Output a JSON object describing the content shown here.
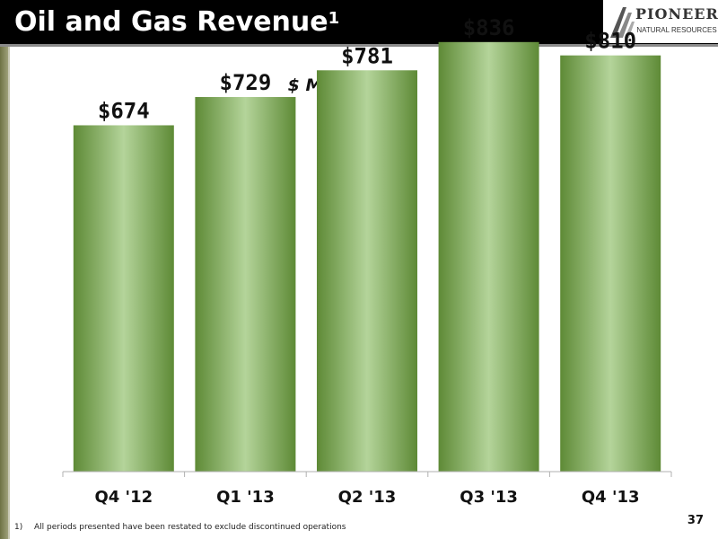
{
  "slide": {
    "title": "Oil and Gas Revenue",
    "title_superscript": "1",
    "subtitle": "$ Millions",
    "page_number": "37"
  },
  "logo": {
    "name": "PIONEER",
    "tagline": "NATURAL RESOURCES",
    "icon": "pioneer-logo-icon"
  },
  "footnote": {
    "number": "1)",
    "text": "All periods presented have been restated to exclude discontinued operations"
  },
  "colors": {
    "header_bg": "#000000",
    "bar_dark": "#5e8a36",
    "bar_light": "#b4d49a",
    "axis": "#b0b0b0"
  },
  "chart_data": {
    "type": "bar",
    "categories": [
      "Q4 '12",
      "Q1 '13",
      "Q2 '13",
      "Q3 '13",
      "Q4 '13"
    ],
    "values": [
      674,
      729,
      781,
      836,
      810
    ],
    "data_labels": [
      "$674",
      "$729",
      "$781",
      "$836",
      "$810"
    ],
    "title": "",
    "xlabel": "",
    "ylabel": "",
    "ylim": [
      0,
      1000
    ],
    "grid": false,
    "legend": "none"
  }
}
